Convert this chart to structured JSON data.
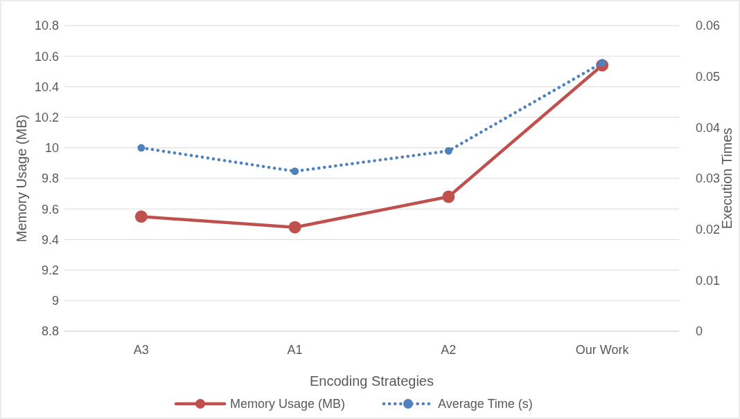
{
  "chart_data": {
    "type": "line",
    "xlabel": "Encoding Strategies",
    "ylabel": "Memory Usage (MB)",
    "y2label": "Execution Times",
    "categories": [
      "A3",
      "A1",
      "A2",
      "Our Work"
    ],
    "series": [
      {
        "name": "Memory Usage (MB)",
        "color": "#c0504d",
        "values": [
          9.55,
          9.48,
          9.68,
          10.54
        ],
        "line_style": "solid",
        "marker": "circle"
      },
      {
        "name": "Average Time (s)",
        "color": "#4f81bd",
        "values": [
          0.036,
          0.0314,
          0.0354,
          0.0527
        ],
        "axis": "y2",
        "line_style": "dotted",
        "marker": "circle"
      }
    ],
    "ylim": [
      8.8,
      10.8
    ],
    "yticks": [
      8.8,
      9,
      9.2,
      9.4,
      9.6,
      9.8,
      10,
      10.2,
      10.4,
      10.6,
      10.8
    ],
    "y2lim": [
      0,
      0.06
    ],
    "y2ticks": [
      0,
      0.01,
      0.02,
      0.03,
      0.04,
      0.05,
      0.06
    ],
    "grid": "y",
    "legend": "bottom"
  }
}
